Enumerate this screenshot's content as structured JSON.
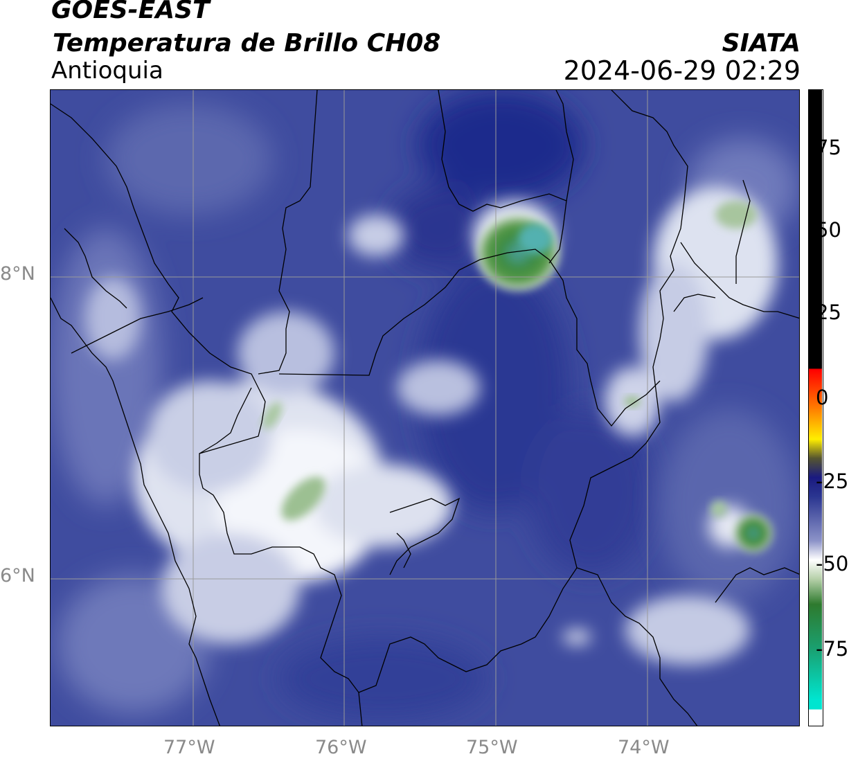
{
  "header": {
    "satellite": "GOES-EAST",
    "product": "Temperatura de Brillo CH08",
    "region": "Antioquia",
    "source": "SIATA",
    "datetime": "2024-06-29 02:29"
  },
  "map": {
    "lat_labels": [
      "8°N",
      "6°N"
    ],
    "lon_labels": [
      "77°W",
      "76°W",
      "75°W",
      "74°W"
    ],
    "colors": {
      "background_blue": "#3d4a9c",
      "dark_blue": "#1c2a8a",
      "light_cloud": "#e9ecf5",
      "cold_green": "#4a8a3c",
      "border": "#000000",
      "gridline": "#9a9a9a"
    }
  },
  "colorbar": {
    "ticks": [
      "75",
      "50",
      "25",
      "0",
      "-25",
      "-50",
      "-75"
    ],
    "colors": [
      "#000000",
      "#ff0000",
      "#ffcc00",
      "#1a1a80",
      "#ffffff",
      "#2e7a2e",
      "#00e5d0"
    ]
  }
}
